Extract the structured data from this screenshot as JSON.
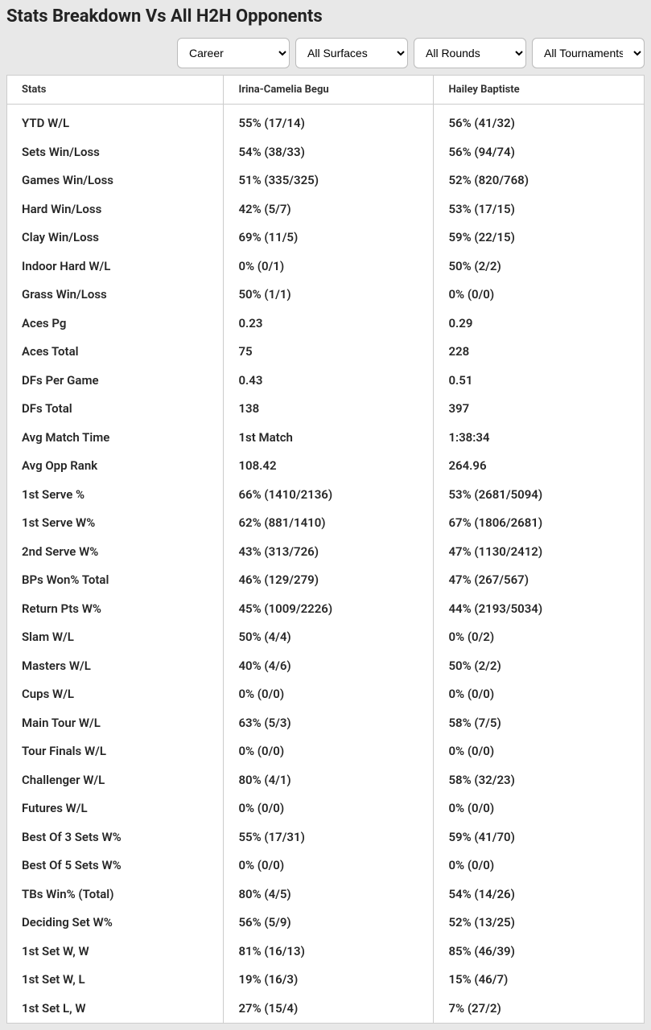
{
  "title": "Stats Breakdown Vs All H2H Opponents",
  "filters": {
    "period": "Career",
    "surface": "All Surfaces",
    "round": "All Rounds",
    "tournament": "All Tournaments"
  },
  "columns": [
    "Stats",
    "Irina-Camelia Begu",
    "Hailey Baptiste"
  ],
  "rows": [
    [
      "YTD W/L",
      "55% (17/14)",
      "56% (41/32)"
    ],
    [
      "Sets Win/Loss",
      "54% (38/33)",
      "56% (94/74)"
    ],
    [
      "Games Win/Loss",
      "51% (335/325)",
      "52% (820/768)"
    ],
    [
      "Hard Win/Loss",
      "42% (5/7)",
      "53% (17/15)"
    ],
    [
      "Clay Win/Loss",
      "69% (11/5)",
      "59% (22/15)"
    ],
    [
      "Indoor Hard W/L",
      "0% (0/1)",
      "50% (2/2)"
    ],
    [
      "Grass Win/Loss",
      "50% (1/1)",
      "0% (0/0)"
    ],
    [
      "Aces Pg",
      "0.23",
      "0.29"
    ],
    [
      "Aces Total",
      "75",
      "228"
    ],
    [
      "DFs Per Game",
      "0.43",
      "0.51"
    ],
    [
      "DFs Total",
      "138",
      "397"
    ],
    [
      "Avg Match Time",
      "1st Match",
      "1:38:34"
    ],
    [
      "Avg Opp Rank",
      "108.42",
      "264.96"
    ],
    [
      "1st Serve %",
      "66% (1410/2136)",
      "53% (2681/5094)"
    ],
    [
      "1st Serve W%",
      "62% (881/1410)",
      "67% (1806/2681)"
    ],
    [
      "2nd Serve W%",
      "43% (313/726)",
      "47% (1130/2412)"
    ],
    [
      "BPs Won% Total",
      "46% (129/279)",
      "47% (267/567)"
    ],
    [
      "Return Pts W%",
      "45% (1009/2226)",
      "44% (2193/5034)"
    ],
    [
      "Slam W/L",
      "50% (4/4)",
      "0% (0/2)"
    ],
    [
      "Masters W/L",
      "40% (4/6)",
      "50% (2/2)"
    ],
    [
      "Cups W/L",
      "0% (0/0)",
      "0% (0/0)"
    ],
    [
      "Main Tour W/L",
      "63% (5/3)",
      "58% (7/5)"
    ],
    [
      "Tour Finals W/L",
      "0% (0/0)",
      "0% (0/0)"
    ],
    [
      "Challenger W/L",
      "80% (4/1)",
      "58% (32/23)"
    ],
    [
      "Futures W/L",
      "0% (0/0)",
      "0% (0/0)"
    ],
    [
      "Best Of 3 Sets W%",
      "55% (17/31)",
      "59% (41/70)"
    ],
    [
      "Best Of 5 Sets W%",
      "0% (0/0)",
      "0% (0/0)"
    ],
    [
      "TBs Win% (Total)",
      "80% (4/5)",
      "54% (14/26)"
    ],
    [
      "Deciding Set W%",
      "56% (5/9)",
      "52% (13/25)"
    ],
    [
      "1st Set W, W",
      "81% (16/13)",
      "85% (46/39)"
    ],
    [
      "1st Set W, L",
      "19% (16/3)",
      "15% (46/7)"
    ],
    [
      "1st Set L, W",
      "27% (15/4)",
      "7% (27/2)"
    ]
  ]
}
